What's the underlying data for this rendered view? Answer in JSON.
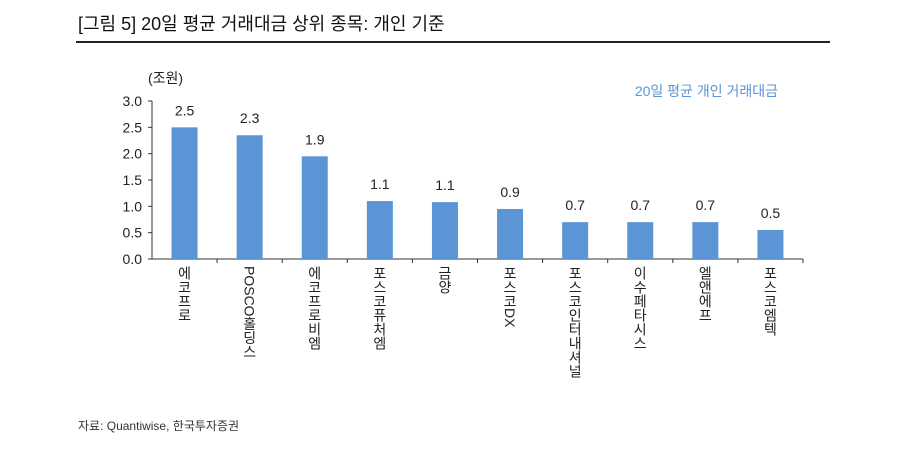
{
  "header": {
    "title": "[그림 5] 20일 평균 거래대금 상위 종목: 개인 기준"
  },
  "footer": {
    "source": "자료: Quantiwise,  한국투자증권"
  },
  "chart_data": {
    "type": "bar",
    "title": "[그림 5] 20일 평균 거래대금 상위 종목: 개인 기준",
    "ylabel": "(조원)",
    "ylim": [
      0,
      3.0
    ],
    "yticks": [
      "0.0",
      "0.5",
      "1.0",
      "1.5",
      "2.0",
      "2.5",
      "3.0"
    ],
    "legend": {
      "label": "20일 평균 개인 거래대금",
      "position": "top-right"
    },
    "color": "#5B95D5",
    "categories": [
      "에코프로",
      "POSCO홀딩스",
      "에코프로비엠",
      "포스코퓨처엠",
      "금양",
      "포스코DX",
      "포스코인터내셔널",
      "이수페타시스",
      "엘앤에프",
      "포스코엠텍"
    ],
    "values": [
      2.5,
      2.35,
      1.95,
      1.1,
      1.08,
      0.95,
      0.7,
      0.7,
      0.7,
      0.55
    ],
    "data_labels": [
      "2.5",
      "2.3",
      "1.9",
      "1.1",
      "1.1",
      "0.9",
      "0.7",
      "0.7",
      "0.7",
      "0.5"
    ]
  }
}
